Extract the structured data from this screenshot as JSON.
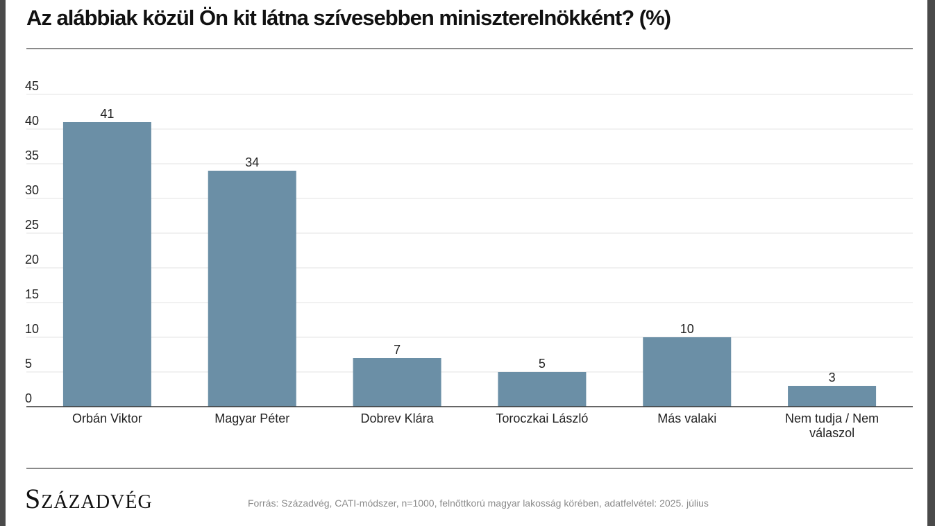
{
  "title": "Az alábbiak közül Ön kit látna szívesebben miniszterelnökként? (%)",
  "brand": "Századvég",
  "source": "Forrás: Századvég, CATI-módszer, n=1000, felnőttkorú magyar lakosság körében, adatfelvétel: 2025. július",
  "colors": {
    "bar": "#6b8fa6",
    "grid": "#e3e3e3",
    "axis": "#333333"
  },
  "chart_data": {
    "type": "bar",
    "title": "Az alábbiak közül Ön kit látna szívesebben miniszterelnökként? (%)",
    "xlabel": "",
    "ylabel": "",
    "ylim": [
      0,
      45
    ],
    "yticks": [
      0,
      5,
      10,
      15,
      20,
      25,
      30,
      35,
      40,
      45
    ],
    "grid": true,
    "legend": "none",
    "categories": [
      [
        "Orbán Viktor"
      ],
      [
        "Magyar Péter"
      ],
      [
        "Dobrev Klára"
      ],
      [
        "Toroczkai László"
      ],
      [
        "Más valaki"
      ],
      [
        "Nem tudja / Nem",
        "válaszol"
      ]
    ],
    "values": [
      41,
      34,
      7,
      5,
      10,
      3
    ]
  }
}
